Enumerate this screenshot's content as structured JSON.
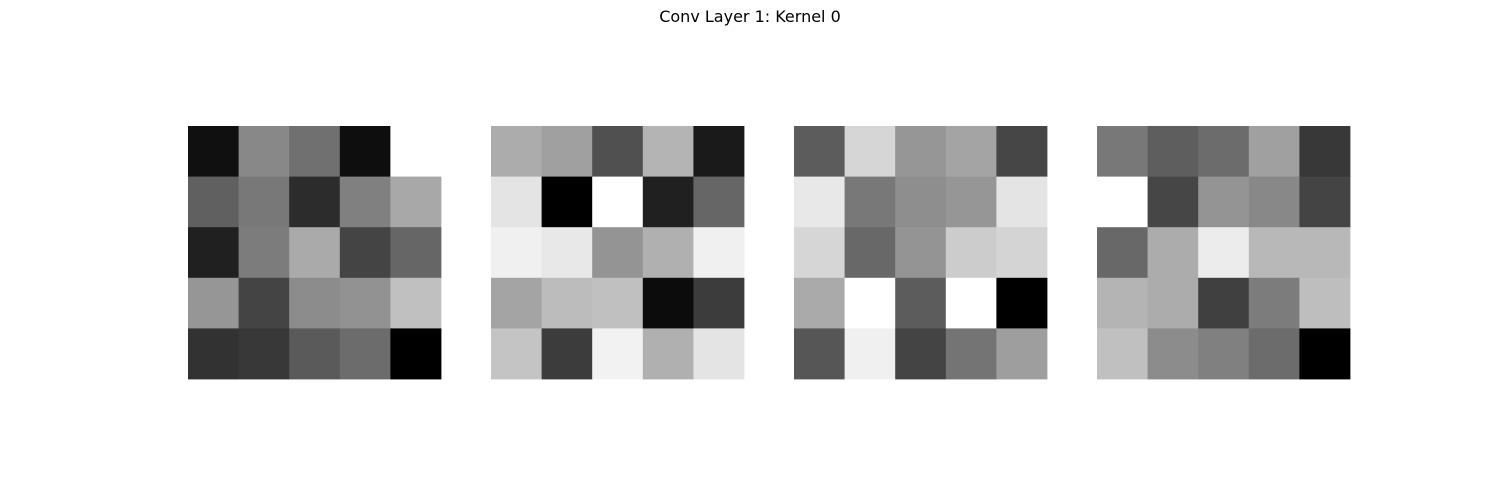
{
  "figure": {
    "title": "Conv Layer 1: Kernel 0"
  },
  "chart_data": {
    "type": "heatmap",
    "title": "Conv Layer 1: Kernel 0",
    "colormap": "gray",
    "value_range": [
      0,
      255
    ],
    "axes_visible": false,
    "panels": [
      {
        "values": [
          [
            16,
            136,
            112,
            14,
            255
          ],
          [
            96,
            120,
            44,
            128,
            168
          ],
          [
            32,
            124,
            170,
            68,
            102
          ],
          [
            150,
            68,
            140,
            146,
            192
          ],
          [
            50,
            56,
            90,
            108,
            0
          ]
        ]
      },
      {
        "values": [
          [
            172,
            160,
            80,
            180,
            26
          ],
          [
            228,
            0,
            255,
            32,
            102
          ],
          [
            240,
            232,
            148,
            176,
            240
          ],
          [
            164,
            188,
            192,
            12,
            60
          ],
          [
            196,
            60,
            242,
            176,
            228
          ]
        ]
      },
      {
        "values": [
          [
            92,
            214,
            150,
            164,
            70
          ],
          [
            232,
            120,
            142,
            150,
            228
          ],
          [
            214,
            104,
            148,
            204,
            212
          ],
          [
            170,
            255,
            92,
            255,
            0
          ],
          [
            86,
            240,
            68,
            116,
            158
          ]
        ]
      },
      {
        "values": [
          [
            120,
            94,
            108,
            160,
            56
          ],
          [
            255,
            70,
            148,
            136,
            68
          ],
          [
            104,
            172,
            236,
            184,
            184
          ],
          [
            180,
            172,
            64,
            124,
            190
          ],
          [
            192,
            140,
            128,
            108,
            0
          ]
        ]
      }
    ]
  }
}
